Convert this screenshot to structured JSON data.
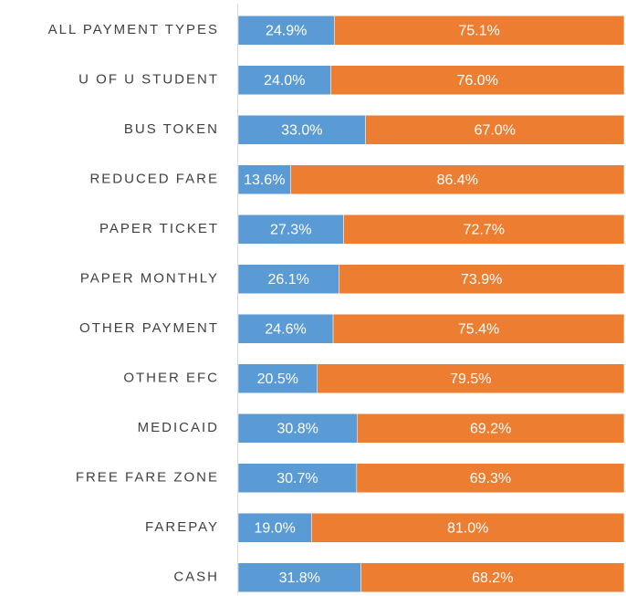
{
  "chart_data": {
    "type": "bar",
    "orientation": "horizontal",
    "stacked": true,
    "categories": [
      "ALL PAYMENT TYPES",
      "U OF U STUDENT",
      "BUS TOKEN",
      "REDUCED FARE",
      "PAPER TICKET",
      "PAPER MONTHLY",
      "OTHER PAYMENT",
      "OTHER EFC",
      "MEDICAID",
      "FREE FARE ZONE",
      "FAREPAY",
      "CASH"
    ],
    "series": [
      {
        "color": "#5b9bd5",
        "values": [
          24.9,
          24.0,
          33.0,
          13.6,
          27.3,
          26.1,
          24.6,
          20.5,
          30.8,
          30.7,
          19.0,
          31.8
        ],
        "value_labels": [
          "24.9%",
          "24.0%",
          "33.0%",
          "13.6%",
          "27.3%",
          "26.1%",
          "24.6%",
          "20.5%",
          "30.8%",
          "30.7%",
          "19.0%",
          "31.8%"
        ]
      },
      {
        "color": "#ed7d31",
        "values": [
          75.1,
          76.0,
          67.0,
          86.4,
          72.7,
          73.9,
          75.4,
          79.5,
          69.2,
          69.3,
          81.0,
          68.2
        ],
        "value_labels": [
          "75.1%",
          "76.0%",
          "67.0%",
          "86.4%",
          "72.7%",
          "73.9%",
          "75.4%",
          "79.5%",
          "69.2%",
          "69.3%",
          "81.0%",
          "68.2%"
        ]
      }
    ],
    "xlim": [
      0,
      100
    ]
  }
}
